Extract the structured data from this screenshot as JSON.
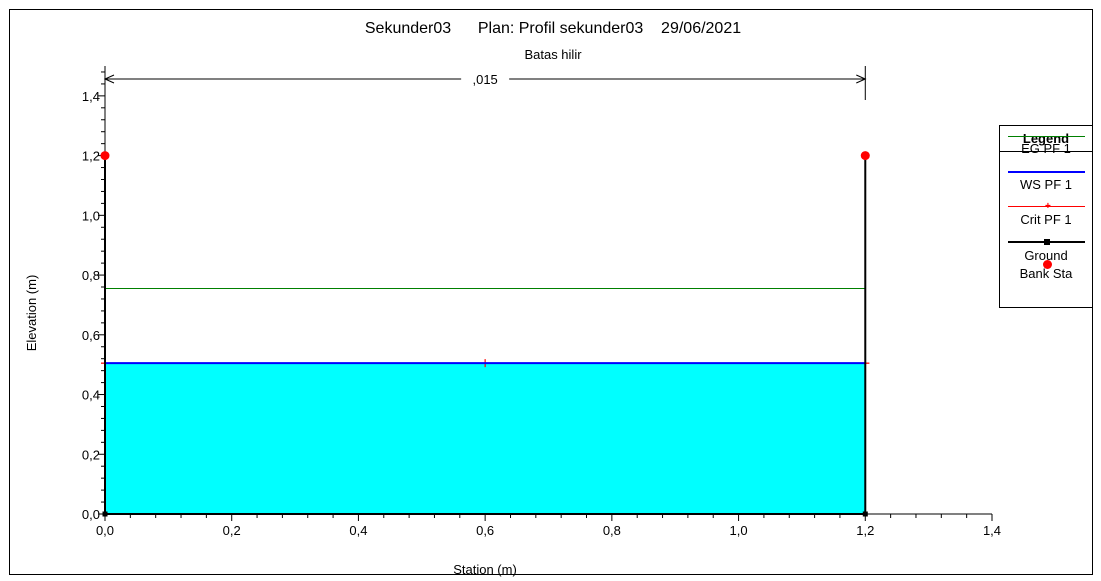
{
  "chart_data": {
    "type": "line",
    "title": "Sekunder03      Plan: Profil sekunder03    29/06/2021",
    "subtitle": "Batas hilir",
    "xlabel": "Station (m)",
    "ylabel": "Elevation (m)",
    "xlim": [
      0.0,
      1.4
    ],
    "ylim": [
      0.0,
      1.5
    ],
    "xticks": [
      "0,0",
      "0,2",
      "0,4",
      "0,6",
      "0,8",
      "1,0",
      "1,2",
      "1,4"
    ],
    "yticks": [
      "0,0",
      "0,2",
      "0,4",
      "0,6",
      "0,8",
      "1,0",
      "1,2",
      "1,4"
    ],
    "xtick_values": [
      0.0,
      0.2,
      0.4,
      0.6,
      0.8,
      1.0,
      1.2,
      1.4
    ],
    "ytick_values": [
      0.0,
      0.2,
      0.4,
      0.6,
      0.8,
      1.0,
      1.2,
      1.4
    ],
    "annotation": ",015",
    "annotation_range": [
      0.0,
      1.2
    ],
    "grid": false,
    "legend_position": "right",
    "water_fill_color": "#00ffff",
    "series": [
      {
        "name": "EG PF 1",
        "color": "#008000",
        "x": [
          0.0,
          1.2
        ],
        "y": [
          0.755,
          0.755
        ]
      },
      {
        "name": "WS PF 1",
        "color": "#0000ff",
        "x": [
          0.0,
          1.2
        ],
        "y": [
          0.505,
          0.505
        ]
      },
      {
        "name": "Crit PF 1",
        "color": "#ff0000",
        "x": [
          0.0,
          0.6,
          1.2
        ],
        "y": [
          0.505,
          0.505,
          0.505
        ]
      },
      {
        "name": "Ground",
        "color": "#000000",
        "x": [
          0.0,
          0.0,
          1.2,
          1.2
        ],
        "y": [
          1.2,
          0.0,
          0.0,
          1.2
        ]
      },
      {
        "name": "Bank Sta",
        "color": "#ff0000",
        "x": [
          0.0,
          1.2
        ],
        "y": [
          1.2,
          1.2
        ]
      }
    ]
  },
  "legend": {
    "title": "Legend",
    "items": [
      "EG PF 1",
      "WS PF 1",
      "Crit PF 1",
      "Ground",
      "Bank Sta"
    ]
  }
}
